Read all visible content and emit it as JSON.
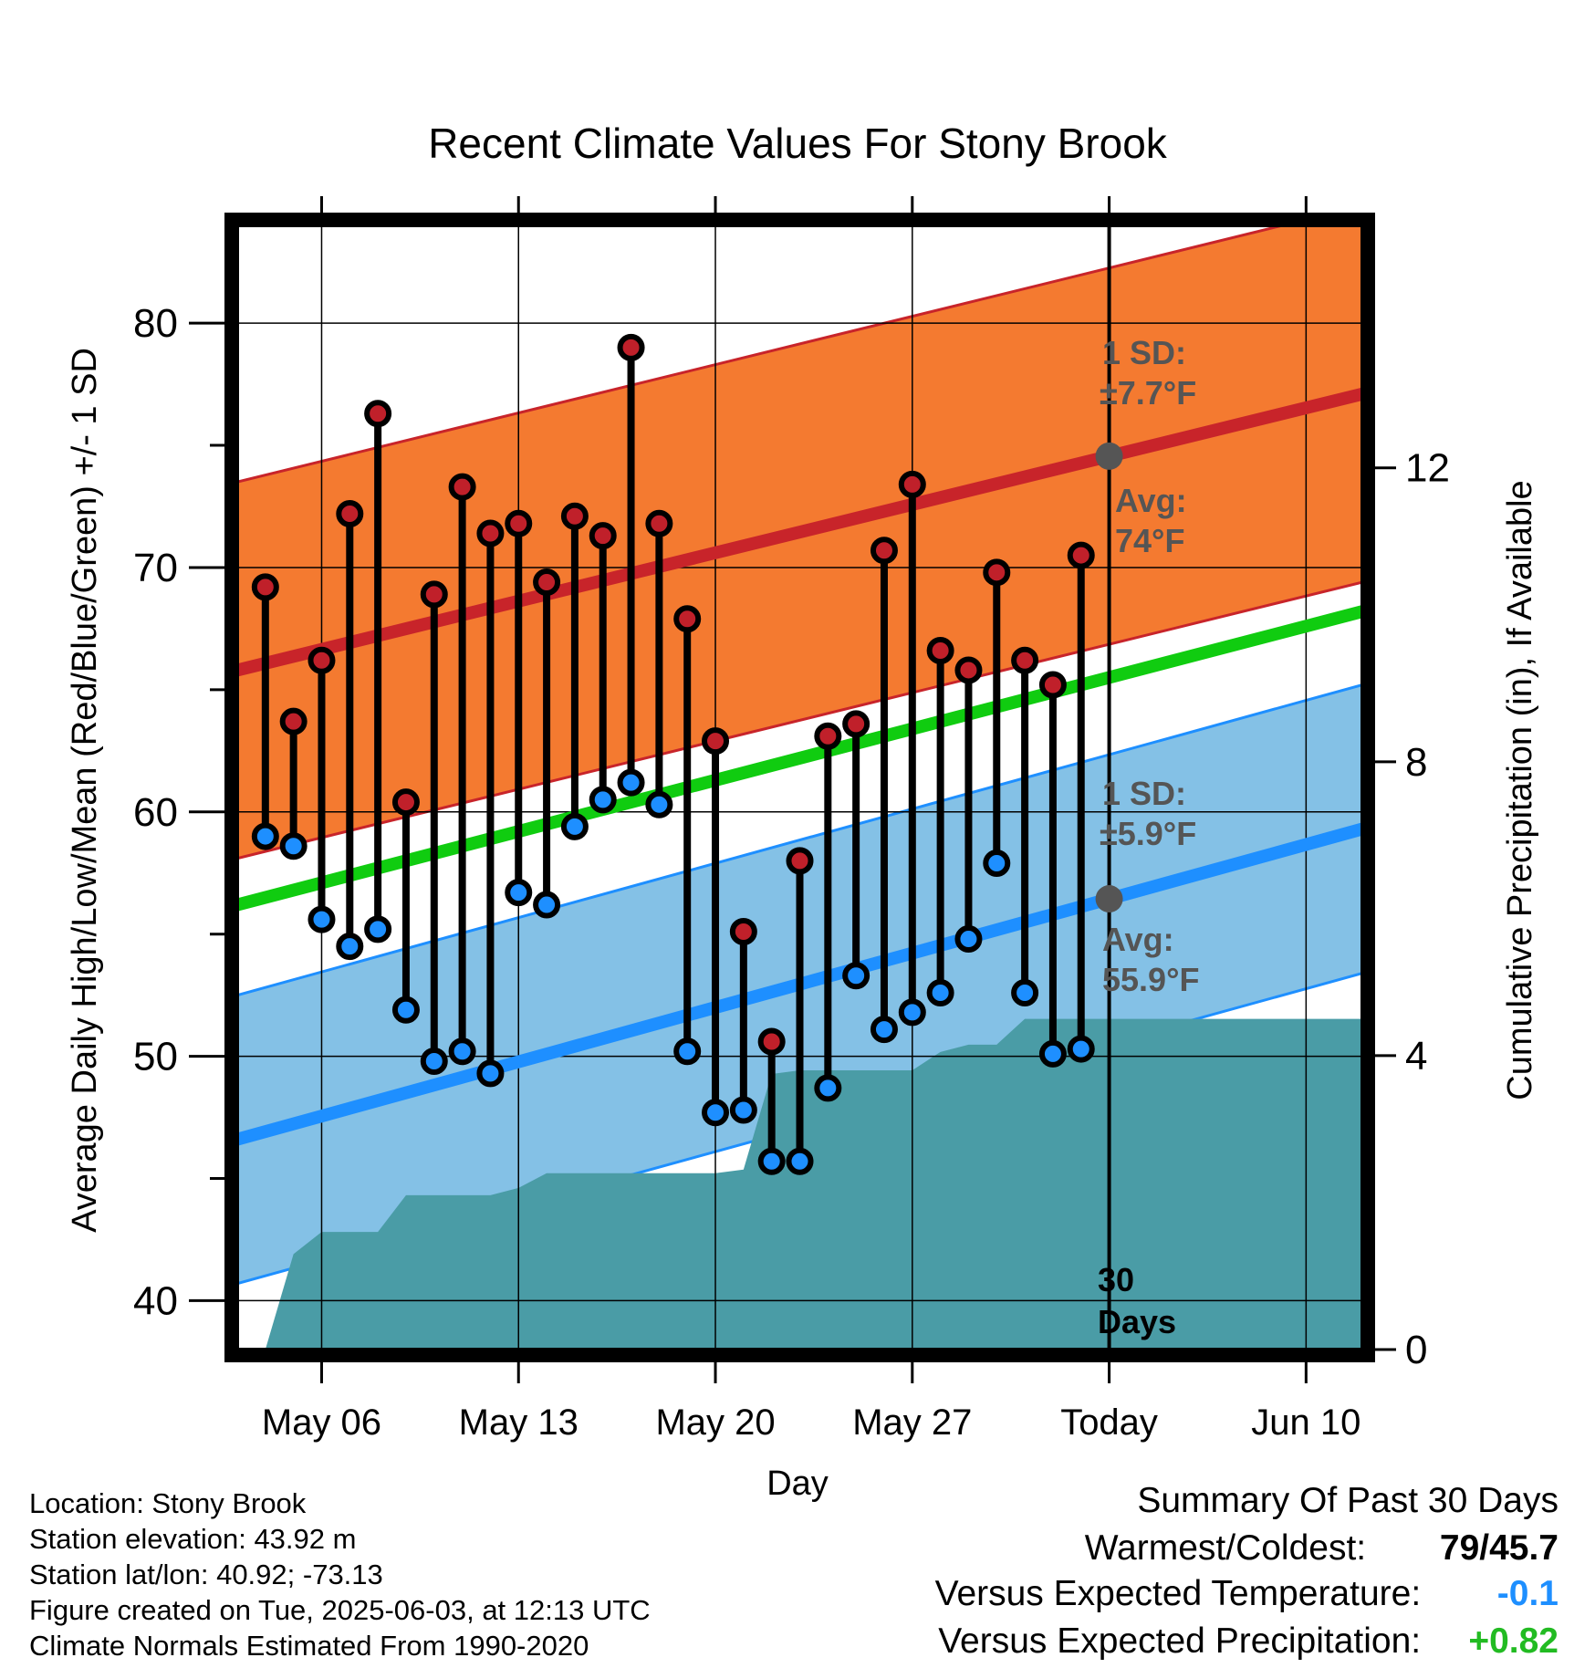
{
  "chart_data": {
    "type": "line",
    "title": "Recent Climate Values For Stony Brook",
    "xlabel": "Day",
    "ylabel": "Average Daily High/Low/Mean (Red/Blue/Green) +/- 1 SD",
    "y2label": "Cumulative Precipitation (in), If Available",
    "ylim": [
      38,
      84
    ],
    "y_ticks": [
      40,
      50,
      60,
      70,
      80
    ],
    "y2lim": [
      0,
      15.3
    ],
    "y2_ticks": [
      0,
      4,
      8,
      12
    ],
    "x_ticks": [
      {
        "label": "May 06",
        "date": "2025-05-06"
      },
      {
        "label": "May 13",
        "date": "2025-05-13"
      },
      {
        "label": "May 20",
        "date": "2025-05-20"
      },
      {
        "label": "May 27",
        "date": "2025-05-27"
      },
      {
        "label": "Today",
        "date": "2025-06-03"
      },
      {
        "label": "Jun 10",
        "date": "2025-06-10"
      }
    ],
    "xlim": [
      "2025-05-03",
      "2025-06-12"
    ],
    "today": "2025-06-03",
    "grid": true,
    "series": [
      {
        "name": "High",
        "color": "#c0202a",
        "x": [
          "2025-05-04",
          "2025-05-05",
          "2025-05-06",
          "2025-05-07",
          "2025-05-08",
          "2025-05-09",
          "2025-05-10",
          "2025-05-11",
          "2025-05-12",
          "2025-05-13",
          "2025-05-14",
          "2025-05-15",
          "2025-05-16",
          "2025-05-17",
          "2025-05-18",
          "2025-05-19",
          "2025-05-20",
          "2025-05-21",
          "2025-05-22",
          "2025-05-23",
          "2025-05-24",
          "2025-05-25",
          "2025-05-26",
          "2025-05-27",
          "2025-05-28",
          "2025-05-29",
          "2025-05-30",
          "2025-05-31",
          "2025-06-01",
          "2025-06-02"
        ],
        "values": [
          69.2,
          63.7,
          66.2,
          72.2,
          76.3,
          60.4,
          68.9,
          73.3,
          71.4,
          71.8,
          69.4,
          72.1,
          71.3,
          79.0,
          71.8,
          67.9,
          62.9,
          55.1,
          50.6,
          58.0,
          63.1,
          63.6,
          70.7,
          73.4,
          66.6,
          65.8,
          69.8,
          66.2,
          65.2,
          70.5
        ]
      },
      {
        "name": "Low",
        "color": "#1e8fff",
        "x": [
          "2025-05-04",
          "2025-05-05",
          "2025-05-06",
          "2025-05-07",
          "2025-05-08",
          "2025-05-09",
          "2025-05-10",
          "2025-05-11",
          "2025-05-12",
          "2025-05-13",
          "2025-05-14",
          "2025-05-15",
          "2025-05-16",
          "2025-05-17",
          "2025-05-18",
          "2025-05-19",
          "2025-05-20",
          "2025-05-21",
          "2025-05-22",
          "2025-05-23",
          "2025-05-24",
          "2025-05-25",
          "2025-05-26",
          "2025-05-27",
          "2025-05-28",
          "2025-05-29",
          "2025-05-30",
          "2025-05-31",
          "2025-06-01",
          "2025-06-02"
        ],
        "values": [
          59.0,
          58.6,
          55.6,
          54.5,
          55.2,
          51.9,
          49.8,
          50.2,
          49.3,
          56.7,
          56.2,
          59.4,
          60.5,
          61.2,
          60.3,
          50.2,
          47.7,
          47.8,
          45.7,
          45.7,
          48.7,
          53.3,
          51.1,
          51.8,
          52.6,
          54.8,
          57.9,
          52.6,
          50.1,
          50.3
        ]
      }
    ],
    "normals": {
      "high_avg": {
        "start": 65.8,
        "end": 77.1,
        "sd": 7.7
      },
      "low_avg": {
        "start": 46.6,
        "end": 59.3,
        "sd": 5.9
      },
      "mean_avg": {
        "start": 56.2,
        "end": 68.2
      }
    },
    "precipitation": {
      "x": [
        "2025-05-04",
        "2025-05-05",
        "2025-05-06",
        "2025-05-07",
        "2025-05-08",
        "2025-05-09",
        "2025-05-10",
        "2025-05-11",
        "2025-05-12",
        "2025-05-13",
        "2025-05-14",
        "2025-05-15",
        "2025-05-16",
        "2025-05-17",
        "2025-05-18",
        "2025-05-19",
        "2025-05-20",
        "2025-05-21",
        "2025-05-22",
        "2025-05-23",
        "2025-05-24",
        "2025-05-25",
        "2025-05-26",
        "2025-05-27",
        "2025-05-28",
        "2025-05-29",
        "2025-05-30",
        "2025-05-31",
        "2025-06-01",
        "2025-06-02",
        "2025-06-03",
        "2025-06-12"
      ],
      "values": [
        0.0,
        1.3,
        1.6,
        1.6,
        1.6,
        2.1,
        2.1,
        2.1,
        2.1,
        2.2,
        2.4,
        2.4,
        2.4,
        2.4,
        2.4,
        2.4,
        2.4,
        2.45,
        3.75,
        3.8,
        3.8,
        3.8,
        3.8,
        3.8,
        4.05,
        4.15,
        4.15,
        4.5,
        4.5,
        4.5,
        4.5,
        4.5
      ]
    },
    "annotations": {
      "high_sd": "1 SD:",
      "high_sd_value": "±7.7°F",
      "high_avg_label": "Avg:",
      "high_avg_value": "74°F",
      "low_sd": "1 SD:",
      "low_sd_value": "±5.9°F",
      "low_avg_label": "Avg:",
      "low_avg_value": "55.9°F",
      "days_num": "30",
      "days_word": "Days"
    },
    "colors": {
      "high_band": "#f47a30",
      "high_line": "#c8242a",
      "low_band": "#84c1e6",
      "low_line": "#1e8fff",
      "mean_line": "#10cc10",
      "precip": "#4a9ca6"
    }
  },
  "info": {
    "location": "Location: Stony Brook",
    "elevation": "Station elevation: 43.92 m",
    "latlon": "Station lat/lon: 40.92; -73.13",
    "created": "Figure created on Tue, 2025-06-03, at 12:13 UTC",
    "normals": "Climate Normals Estimated From 1990-2020"
  },
  "summary": {
    "title": "Summary Of Past 30 Days",
    "warmest_label": "Warmest/Coldest:",
    "warmest_value": "79/45.7",
    "temp_label": "Versus Expected Temperature:",
    "temp_value": "-0.1",
    "temp_color": "#1e8fff",
    "precip_label": "Versus Expected Precipitation:",
    "precip_value": "+0.82",
    "precip_color": "#22bb22"
  }
}
